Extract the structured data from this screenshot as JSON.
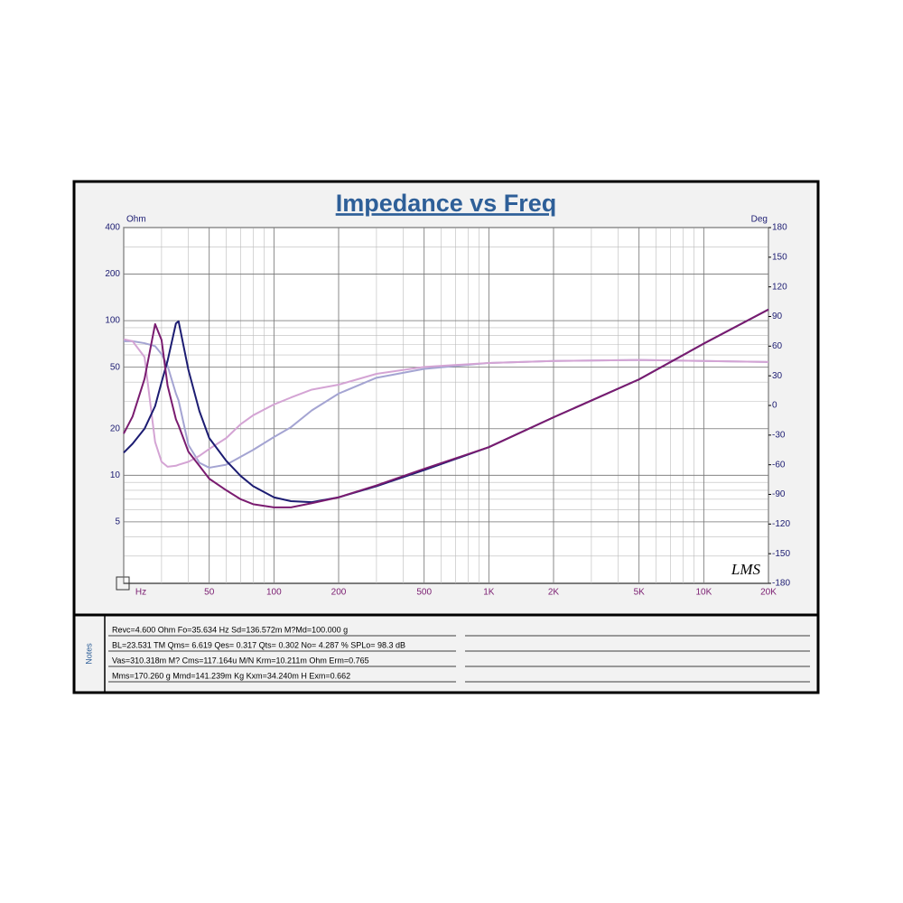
{
  "chart_data": {
    "type": "line",
    "title": "Impedance vs Freq",
    "ylabel": "Ohm",
    "y2label": "Deg",
    "logo": "LMS",
    "xscale": "log",
    "yscale": "log",
    "grid": true,
    "xlim": [
      20,
      20000
    ],
    "ylim": [
      2,
      400
    ],
    "y2lim": [
      -180,
      180
    ],
    "xticks": [
      {
        "value": 20,
        "label": "Hz"
      },
      50,
      100,
      200,
      500,
      {
        "value": 1000,
        "label": "1K"
      },
      {
        "value": 2000,
        "label": "2K"
      },
      {
        "value": 5000,
        "label": "5K"
      },
      {
        "value": 10000,
        "label": "10K"
      },
      {
        "value": 20000,
        "label": "20K"
      }
    ],
    "yticks": [
      5,
      10,
      20,
      50,
      100,
      200,
      400
    ],
    "y2ticks": [
      -180,
      -150,
      -120,
      -90,
      -60,
      -30,
      0,
      30,
      60,
      90,
      120,
      150,
      180
    ],
    "x": [
      20,
      22,
      25,
      28,
      30,
      32,
      35,
      36,
      40,
      45,
      50,
      60,
      70,
      80,
      100,
      120,
      150,
      200,
      300,
      500,
      1000,
      2000,
      5000,
      10000,
      20000
    ],
    "series": [
      {
        "color": "#1c1c72",
        "values": [
          14,
          16,
          20,
          28,
          40,
          55,
          96,
          99,
          48,
          26,
          17.4,
          12.4,
          9.9,
          8.5,
          7.2,
          6.8,
          6.7,
          7.2,
          8.5,
          10.8,
          15.2,
          23.7,
          41.7,
          71,
          118
        ]
      },
      {
        "color": "#7a1c70",
        "values": [
          18.6,
          24,
          42,
          95,
          75,
          38,
          23,
          21,
          14.2,
          11.5,
          9.5,
          8.0,
          7.0,
          6.5,
          6.2,
          6.2,
          6.6,
          7.2,
          8.6,
          11,
          15.2,
          23.7,
          41.7,
          71,
          118
        ]
      },
      {
        "color": "#a4a4d2",
        "axis": "y2",
        "values": [
          65,
          65,
          63,
          60,
          52,
          40,
          12,
          5,
          -40,
          -58,
          -63,
          -60,
          -52,
          -45,
          -32,
          -22,
          -5,
          12,
          28,
          37,
          43,
          45,
          46,
          45,
          44
        ]
      },
      {
        "color": "#d4a4d4",
        "axis": "y2",
        "values": [
          67,
          65,
          49,
          -37,
          -57,
          -62,
          -61,
          -60,
          -57,
          -51,
          -44,
          -33,
          -19,
          -10,
          1,
          8,
          16,
          21,
          32,
          39,
          43,
          45,
          46,
          45,
          44
        ]
      }
    ]
  },
  "notes": {
    "label": "Notes",
    "lines": [
      "Revc=4.600 Ohm  Fo=35.634 Hz  Sd=136.572m M?Md=100.000 g",
      "BL=23.531 TM  Qms= 6.619  Qes= 0.317  Qts= 0.302  No= 4.287 %  SPLo= 98.3 dB",
      "Vas=310.318m M?  Cms=117.164u M/N  Krm=10.211m Ohm  Erm=0.765",
      "Mms=170.260 g  Mmd=141.239m Kg  Kxm=34.240m H  Exm=0.662"
    ]
  }
}
